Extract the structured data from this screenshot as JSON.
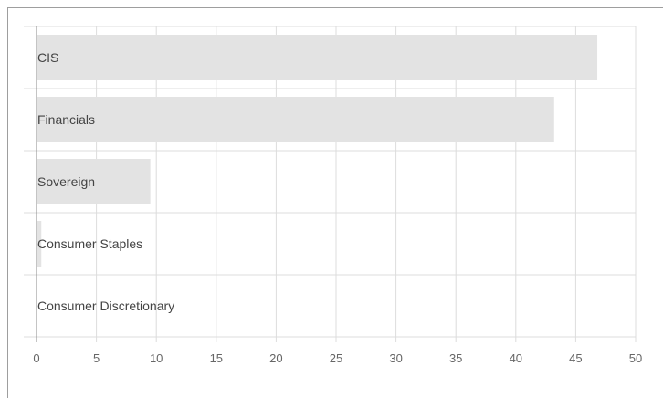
{
  "chart_data": {
    "type": "bar",
    "orientation": "horizontal",
    "categories": [
      "CIS",
      "Financials",
      "Sovereign",
      "Consumer Staples",
      "Consumer Discretionary"
    ],
    "values": [
      46.8,
      43.2,
      9.5,
      0.4,
      0
    ],
    "xlim": [
      0,
      50
    ],
    "x_ticks": [
      0,
      5,
      10,
      15,
      20,
      25,
      30,
      35,
      40,
      45,
      50
    ],
    "grid": true,
    "legend": "none",
    "bar_color": "#e3e3e3",
    "grid_color": "#dcdcdc",
    "axis_color": "#888888"
  }
}
